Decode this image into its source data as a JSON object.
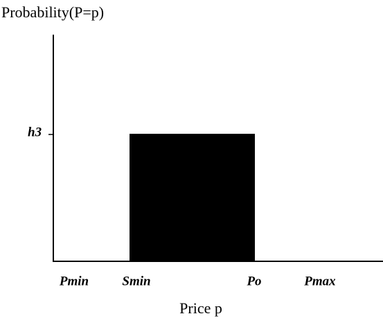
{
  "y_axis": {
    "title": "Probability(P=p)",
    "tick_label": "h3"
  },
  "x_axis": {
    "title": "Price p",
    "tick_labels": [
      "Pmin",
      "Smin",
      "Po",
      "Pmax"
    ]
  }
}
